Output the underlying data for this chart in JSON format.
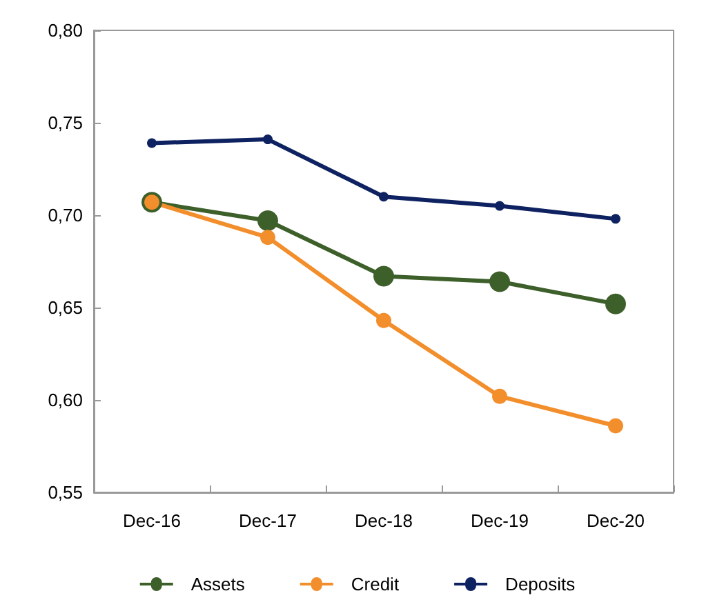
{
  "chart_data": {
    "type": "line",
    "categories": [
      "Dec-16",
      "Dec-17",
      "Dec-18",
      "Dec-19",
      "Dec-20"
    ],
    "series": [
      {
        "name": "Assets",
        "color": "#3d5f2a",
        "values": [
          0.707,
          0.697,
          0.667,
          0.664,
          0.652
        ]
      },
      {
        "name": "Credit",
        "color": "#f28e2b",
        "values": [
          0.707,
          0.688,
          0.643,
          0.602,
          0.586
        ]
      },
      {
        "name": "Deposits",
        "color": "#0e2261",
        "values": [
          0.739,
          0.741,
          0.71,
          0.705,
          0.698
        ]
      }
    ],
    "ylim": [
      0.55,
      0.8
    ],
    "yticks": [
      {
        "value": 0.55,
        "label": "0,55"
      },
      {
        "value": 0.6,
        "label": "0,60"
      },
      {
        "value": 0.65,
        "label": "0,65"
      },
      {
        "value": 0.7,
        "label": "0,70"
      },
      {
        "value": 0.75,
        "label": "0,75"
      },
      {
        "value": 0.8,
        "label": "0,80"
      }
    ],
    "grid": false,
    "legend": "bottom",
    "marker": "circle",
    "line_style": "solid"
  }
}
